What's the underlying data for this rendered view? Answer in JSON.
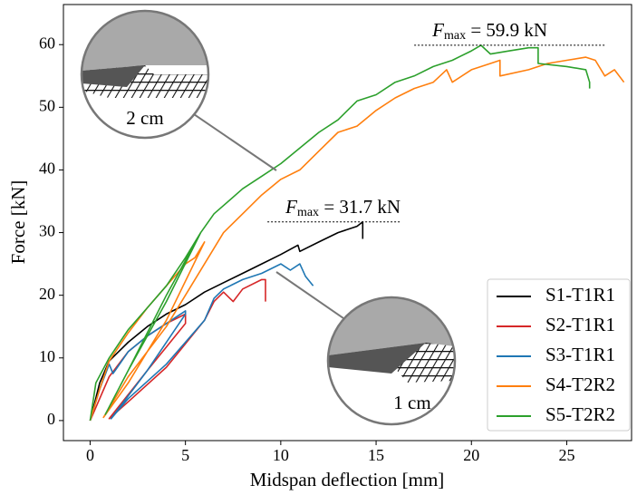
{
  "chart_data": {
    "type": "line",
    "xlabel": "Midspan deflection [mm]",
    "ylabel": "Force [kN]",
    "xlim": [
      -1.4,
      28.4
    ],
    "ylim": [
      -3.2,
      66.4
    ],
    "xticks": [
      0,
      5,
      10,
      15,
      20,
      25
    ],
    "yticks": [
      0,
      10,
      20,
      30,
      40,
      50,
      60
    ],
    "grid": false,
    "legend": "lower right",
    "series": [
      {
        "name": "S1-T1R1",
        "color": "#000000",
        "x": [
          0,
          0.5,
          1,
          2,
          3,
          4,
          5,
          6,
          7,
          8,
          9,
          10,
          10.9,
          11,
          12,
          13,
          14,
          14.3,
          14.3
        ],
        "values": [
          0,
          6,
          9.5,
          12.5,
          15,
          17,
          18.5,
          20.5,
          22,
          23.5,
          25,
          26.5,
          28,
          27,
          28.5,
          30,
          31,
          31.7,
          29
        ]
      },
      {
        "name": "S2-T1R1",
        "color": "#d62728",
        "x": [
          0,
          1,
          2,
          3,
          4,
          5,
          5,
          3,
          1,
          2,
          4,
          6,
          6.5,
          7,
          7.5,
          8,
          9,
          9.2,
          9.2
        ],
        "values": [
          0,
          7,
          11,
          13.5,
          15.5,
          17,
          15.5,
          8,
          0.3,
          3,
          8.5,
          16,
          19,
          20.5,
          19,
          21,
          22.5,
          22.5,
          19
        ]
      },
      {
        "name": "S3-T1R1",
        "color": "#1f77b4",
        "x": [
          0,
          0.5,
          1,
          1.2,
          2,
          3,
          4,
          5,
          5,
          3,
          1.1,
          2,
          4,
          6,
          6.5,
          7,
          8,
          9,
          10,
          10.5,
          11,
          11.3,
          11.7
        ],
        "values": [
          0,
          5,
          9,
          7.5,
          11,
          13.5,
          15.5,
          17.5,
          17,
          8,
          0.3,
          3.5,
          9,
          16,
          19.5,
          21,
          22.5,
          23.5,
          25,
          24,
          25,
          23,
          21.5
        ]
      },
      {
        "name": "S4-T2R2",
        "color": "#ff7f0e",
        "x": [
          0,
          0.5,
          1,
          2,
          3,
          4,
          5,
          5.5,
          6,
          4,
          2,
          0.7,
          2,
          4,
          6,
          7,
          8,
          9,
          10,
          11,
          12,
          13,
          14,
          15,
          16,
          17,
          18,
          18.7,
          19,
          20,
          21,
          21.5,
          21.5,
          23,
          24,
          25,
          26,
          26.5,
          27,
          27.5,
          28
        ],
        "values": [
          0,
          5,
          9.5,
          14,
          18,
          21.5,
          25,
          26,
          28.5,
          16,
          6,
          0.5,
          7,
          15,
          25,
          30,
          33,
          36,
          38.5,
          40,
          43,
          46,
          47,
          49.5,
          51.5,
          53,
          54,
          56,
          54,
          56,
          57,
          57.5,
          55,
          56,
          57,
          57.5,
          58,
          57.5,
          55,
          56,
          54
        ]
      },
      {
        "name": "S5-T2R2",
        "color": "#2ca02c",
        "x": [
          0,
          0.3,
          1,
          2,
          3,
          4,
          5,
          5.8,
          4,
          2,
          0.8,
          2,
          4,
          5.8,
          6.5,
          8,
          9,
          10,
          11,
          12,
          13,
          14,
          15,
          16,
          17,
          18,
          19,
          20,
          20.5,
          21,
          22,
          23,
          23.5,
          23.5,
          25,
          26,
          26.2,
          26.2
        ],
        "values": [
          0,
          6,
          10,
          14.5,
          18,
          21.5,
          26,
          30,
          20,
          8,
          1,
          8,
          19,
          30,
          33,
          37,
          39,
          41,
          43.5,
          46,
          48,
          51,
          52,
          54,
          55,
          56.5,
          57.5,
          59,
          59.9,
          58.5,
          59,
          59.5,
          59.5,
          57,
          56.5,
          56,
          54,
          53
        ]
      }
    ],
    "annotations": [
      {
        "symbol": "F",
        "subscript": "max",
        "text": " = 59.9 kN",
        "y": 59.9,
        "x_range": [
          17,
          27
        ]
      },
      {
        "symbol": "F",
        "subscript": "max",
        "text": " = 31.7 kN",
        "y": 31.7,
        "x_range": [
          9.3,
          16.3
        ]
      }
    ],
    "insets": [
      {
        "label": "2 cm"
      },
      {
        "label": "1 cm"
      }
    ]
  }
}
